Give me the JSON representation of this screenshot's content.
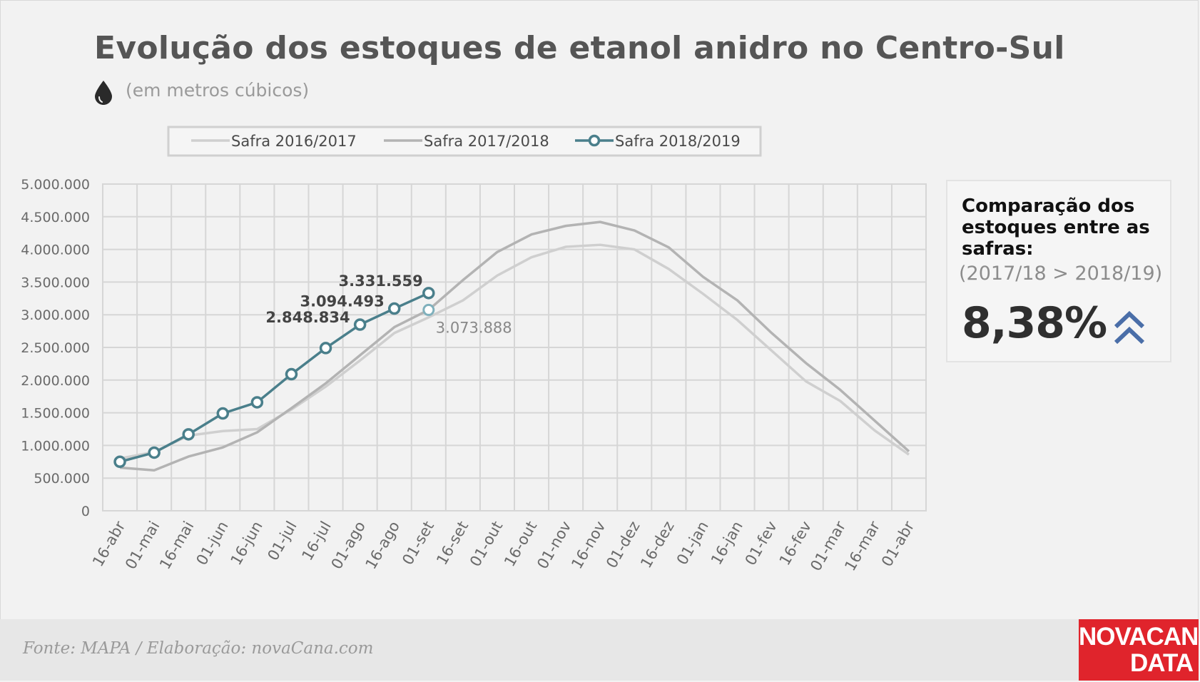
{
  "header": {
    "title": "Evolução dos estoques de etanol anidro no Centro-Sul",
    "subtitle": "(em metros cúbicos)",
    "icon": "drop-icon"
  },
  "chart_data": {
    "type": "line",
    "title": "Evolução dos estoques de etanol anidro no Centro-Sul",
    "ylabel": "",
    "xlabel": "",
    "ylim": [
      0,
      5000000
    ],
    "yticks": [
      "0",
      "500.000",
      "1.000.000",
      "1.500.000",
      "2.000.000",
      "2.500.000",
      "3.000.000",
      "3.500.000",
      "4.000.000",
      "4.500.000",
      "5.000.000"
    ],
    "categories": [
      "16-abr",
      "01-mai",
      "16-mai",
      "01-jun",
      "16-jun",
      "01-jul",
      "16-jul",
      "01-ago",
      "16-ago",
      "01-set",
      "16-set",
      "01-out",
      "16-out",
      "01-nov",
      "16-nov",
      "01-dez",
      "16-dez",
      "01-jan",
      "16-jan",
      "01-fev",
      "16-fev",
      "01-mar",
      "16-mar",
      "01-abr"
    ],
    "grid": true,
    "legend_position": "top",
    "series": [
      {
        "name": "Safra 2016/2017",
        "color": "#cfcfcf",
        "markers": false,
        "values": [
          800000,
          900000,
          1150000,
          1220000,
          1250000,
          1550000,
          1900000,
          2300000,
          2720000,
          2960000,
          3220000,
          3600000,
          3880000,
          4040000,
          4070000,
          4000000,
          3700000,
          3320000,
          2920000,
          2450000,
          1980000,
          1680000,
          1230000,
          860000
        ]
      },
      {
        "name": "Safra 2017/2018",
        "color": "#b3b3b3",
        "markers": false,
        "values": [
          660000,
          620000,
          830000,
          970000,
          1200000,
          1570000,
          1950000,
          2380000,
          2810000,
          3073888,
          3530000,
          3960000,
          4230000,
          4360000,
          4420000,
          4290000,
          4030000,
          3580000,
          3220000,
          2720000,
          2260000,
          1850000,
          1380000,
          910000
        ]
      },
      {
        "name": "Safra 2018/2019",
        "color": "#4a7f8b",
        "markers": true,
        "values": [
          750000,
          890000,
          1170000,
          1490000,
          1660000,
          2090000,
          2490000,
          2848834,
          3094493,
          3331559,
          null,
          null,
          null,
          null,
          null,
          null,
          null,
          null,
          null,
          null,
          null,
          null,
          null,
          null
        ]
      }
    ],
    "annotations": [
      {
        "text": "3.331.559",
        "series": 2,
        "index": 9,
        "color": "#444444",
        "placement": "above-left"
      },
      {
        "text": "3.094.493",
        "series": 2,
        "index": 8,
        "color": "#444444",
        "placement": "left"
      },
      {
        "text": "2.848.834",
        "series": 2,
        "index": 7,
        "color": "#444444",
        "placement": "left"
      },
      {
        "text": "3.073.888",
        "series": 1,
        "index": 9,
        "color": "#888888",
        "placement": "below-right",
        "marker": true
      }
    ]
  },
  "panel": {
    "heading": "Comparação dos estoques entre as safras:",
    "subheading": "(2017/18 > 2018/19)",
    "value": "8,38%",
    "icon": "double-chevron-up-icon",
    "icon_color": "#4a6ea8"
  },
  "footer": {
    "source": "Fonte: MAPA  / Elaboração: novaCana.com",
    "logo_line1": "NOVACANA",
    "logo_line2": "DATA"
  }
}
